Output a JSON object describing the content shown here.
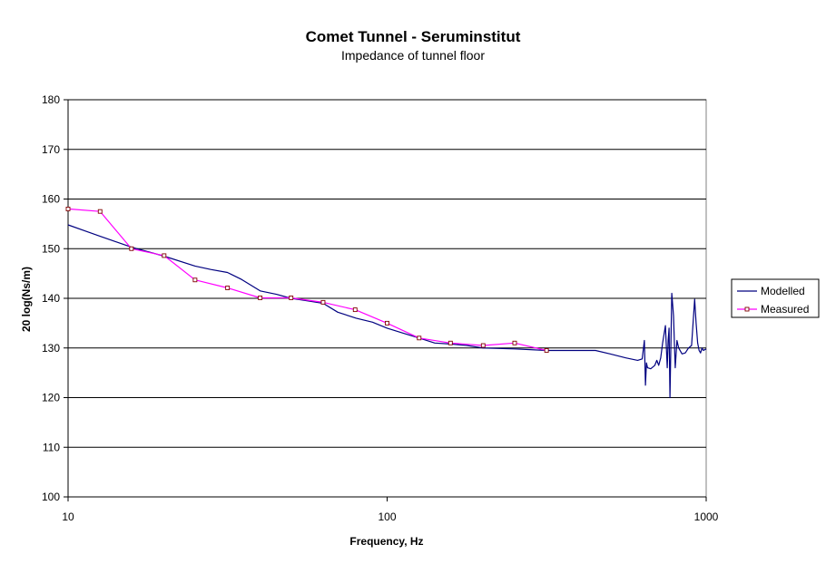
{
  "chart_data": {
    "type": "line",
    "title": "Comet Tunnel - Seruminstitut",
    "subtitle": "Impedance of tunnel floor",
    "xlabel": "Frequency, Hz",
    "ylabel": "20 log(Ns/m)",
    "x_scale": "log",
    "xlim": [
      10,
      1000
    ],
    "ylim": [
      100,
      180
    ],
    "x_ticks": [
      10,
      100,
      1000
    ],
    "x_tick_labels": [
      "10",
      "100",
      "1000"
    ],
    "y_ticks": [
      100,
      110,
      120,
      130,
      140,
      150,
      160,
      170,
      180
    ],
    "y_tick_labels": [
      "100",
      "110",
      "120",
      "130",
      "140",
      "150",
      "160",
      "170",
      "180"
    ],
    "grid": "horizontal",
    "legend": "right",
    "series": [
      {
        "name": "Modelled",
        "color": "#000080",
        "marker": "none",
        "x": [
          10,
          12.6,
          15.8,
          20,
          25,
          28,
          31.6,
          35,
          40,
          45,
          50,
          56,
          63,
          70,
          80,
          90,
          100,
          112,
          126,
          141,
          158,
          178,
          200,
          251,
          316,
          400,
          450,
          500,
          560,
          610,
          630,
          640,
          645,
          650,
          655,
          670,
          690,
          700,
          710,
          720,
          730,
          745,
          755,
          760,
          765,
          770,
          780,
          790,
          800,
          810,
          820,
          840,
          860,
          880,
          900,
          920,
          930,
          940,
          950,
          960,
          970,
          980,
          1000
        ],
        "y": [
          154.8,
          152.5,
          150.3,
          148.5,
          146.5,
          145.8,
          145.2,
          143.8,
          141.5,
          140.8,
          140.0,
          139.5,
          139.0,
          137.2,
          136.0,
          135.2,
          134.0,
          133.0,
          132.0,
          131.0,
          130.8,
          130.5,
          130.0,
          129.8,
          129.5,
          129.5,
          129.5,
          128.8,
          128.0,
          127.5,
          127.8,
          131.5,
          122.5,
          127.0,
          126.0,
          125.8,
          126.5,
          127.5,
          126.5,
          128.0,
          131.0,
          134.5,
          126.0,
          131.5,
          134.0,
          120.0,
          141.0,
          136.5,
          126.0,
          131.5,
          130.0,
          128.8,
          129.0,
          130.0,
          130.5,
          139.8,
          135.0,
          131.0,
          129.5,
          129.0,
          130.0,
          129.5,
          129.8
        ]
      },
      {
        "name": "Measured",
        "color": "#ff00ff",
        "marker": "square",
        "x": [
          10,
          12.6,
          15.8,
          20,
          25,
          31.6,
          40,
          50,
          63,
          79.4,
          100,
          126,
          158,
          200,
          251,
          316
        ],
        "y": [
          158.0,
          157.5,
          150.0,
          148.6,
          143.7,
          142.1,
          140.1,
          140.1,
          139.2,
          137.7,
          135.0,
          132.0,
          131.0,
          130.5,
          131.0,
          129.5
        ]
      }
    ]
  }
}
